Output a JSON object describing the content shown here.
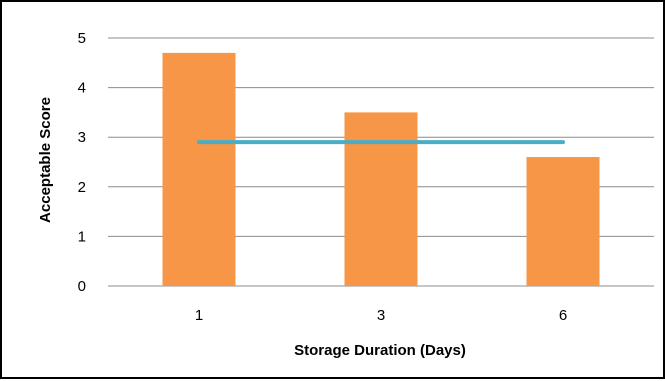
{
  "chart_data": {
    "type": "bar",
    "categories": [
      "1",
      "3",
      "6"
    ],
    "values": [
      4.7,
      3.5,
      2.6
    ],
    "reference_line": {
      "value": 2.9,
      "color": "#4bacc6"
    },
    "xlabel": "Storage Duration (Days)",
    "ylabel": "Acceptable Score",
    "ylim": [
      0,
      5
    ],
    "yticks": [
      "0",
      "1",
      "2",
      "3",
      "4",
      "5"
    ],
    "grid": true,
    "legend": "none",
    "bar_color": "#f79646",
    "grid_color": "#8c8c8c"
  }
}
